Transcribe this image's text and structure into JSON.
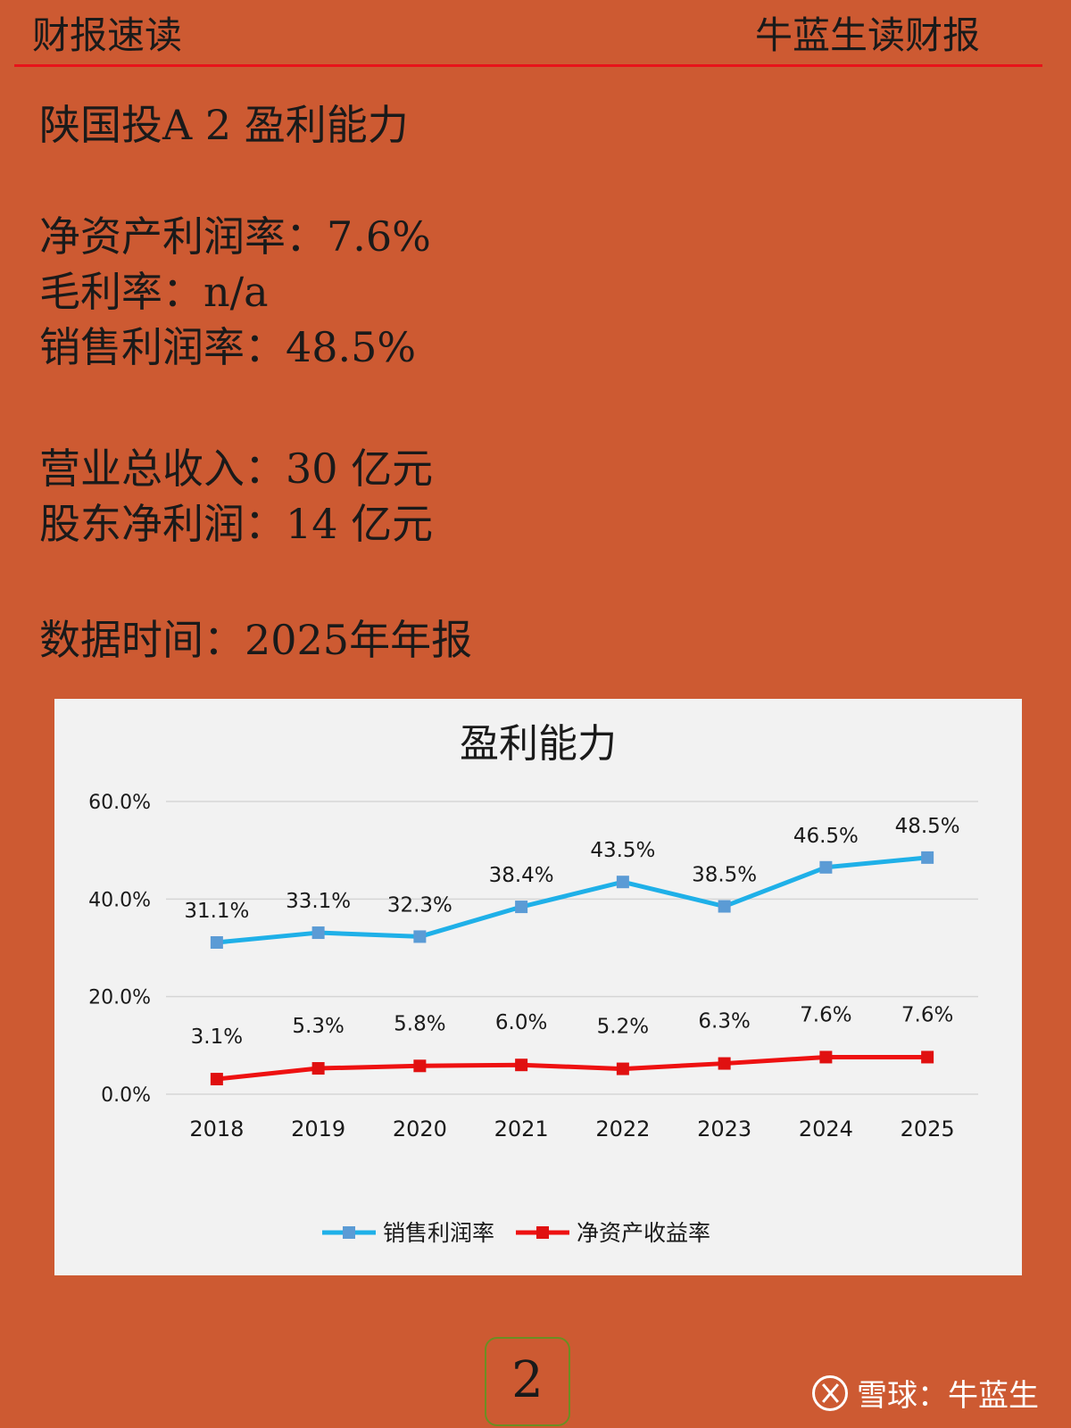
{
  "header": {
    "left": "财报速读",
    "right": "牛蓝生读财报"
  },
  "title": {
    "name": "陕国投",
    "suffix": "A 2 盈利能力"
  },
  "metrics": [
    {
      "label": "净资产利润率：",
      "value": "7.6%"
    },
    {
      "label": "毛利率：",
      "value": "n/a"
    },
    {
      "label": "销售利润率：",
      "value": "48.5%"
    }
  ],
  "amounts": [
    {
      "label": "营业总收入：",
      "value": "30 亿元"
    },
    {
      "label": "股东净利润：",
      "value": "14 亿元"
    }
  ],
  "date": {
    "label": "数据时间：",
    "value": "2025年年报"
  },
  "chart_data": {
    "type": "line",
    "title": "盈利能力",
    "categories": [
      "2018",
      "2019",
      "2020",
      "2021",
      "2022",
      "2023",
      "2024",
      "2025"
    ],
    "series": [
      {
        "name": "销售利润率",
        "values": [
          31.1,
          33.1,
          32.3,
          38.4,
          43.5,
          38.5,
          46.5,
          48.5
        ],
        "color": "#1fb0e8",
        "marker_color": "#5b9bd5"
      },
      {
        "name": "净资产收益率",
        "values": [
          3.1,
          5.3,
          5.8,
          6.0,
          5.2,
          6.3,
          7.6,
          7.6
        ],
        "color": "#ee1111",
        "marker_color": "#e01010"
      }
    ],
    "ylim": [
      0,
      60
    ],
    "yticks": [
      "0.0%",
      "20.0%",
      "40.0%",
      "60.0%"
    ],
    "grid": true,
    "legend": "bottom"
  },
  "page_number": "2",
  "watermark": "雪球：牛蓝生"
}
